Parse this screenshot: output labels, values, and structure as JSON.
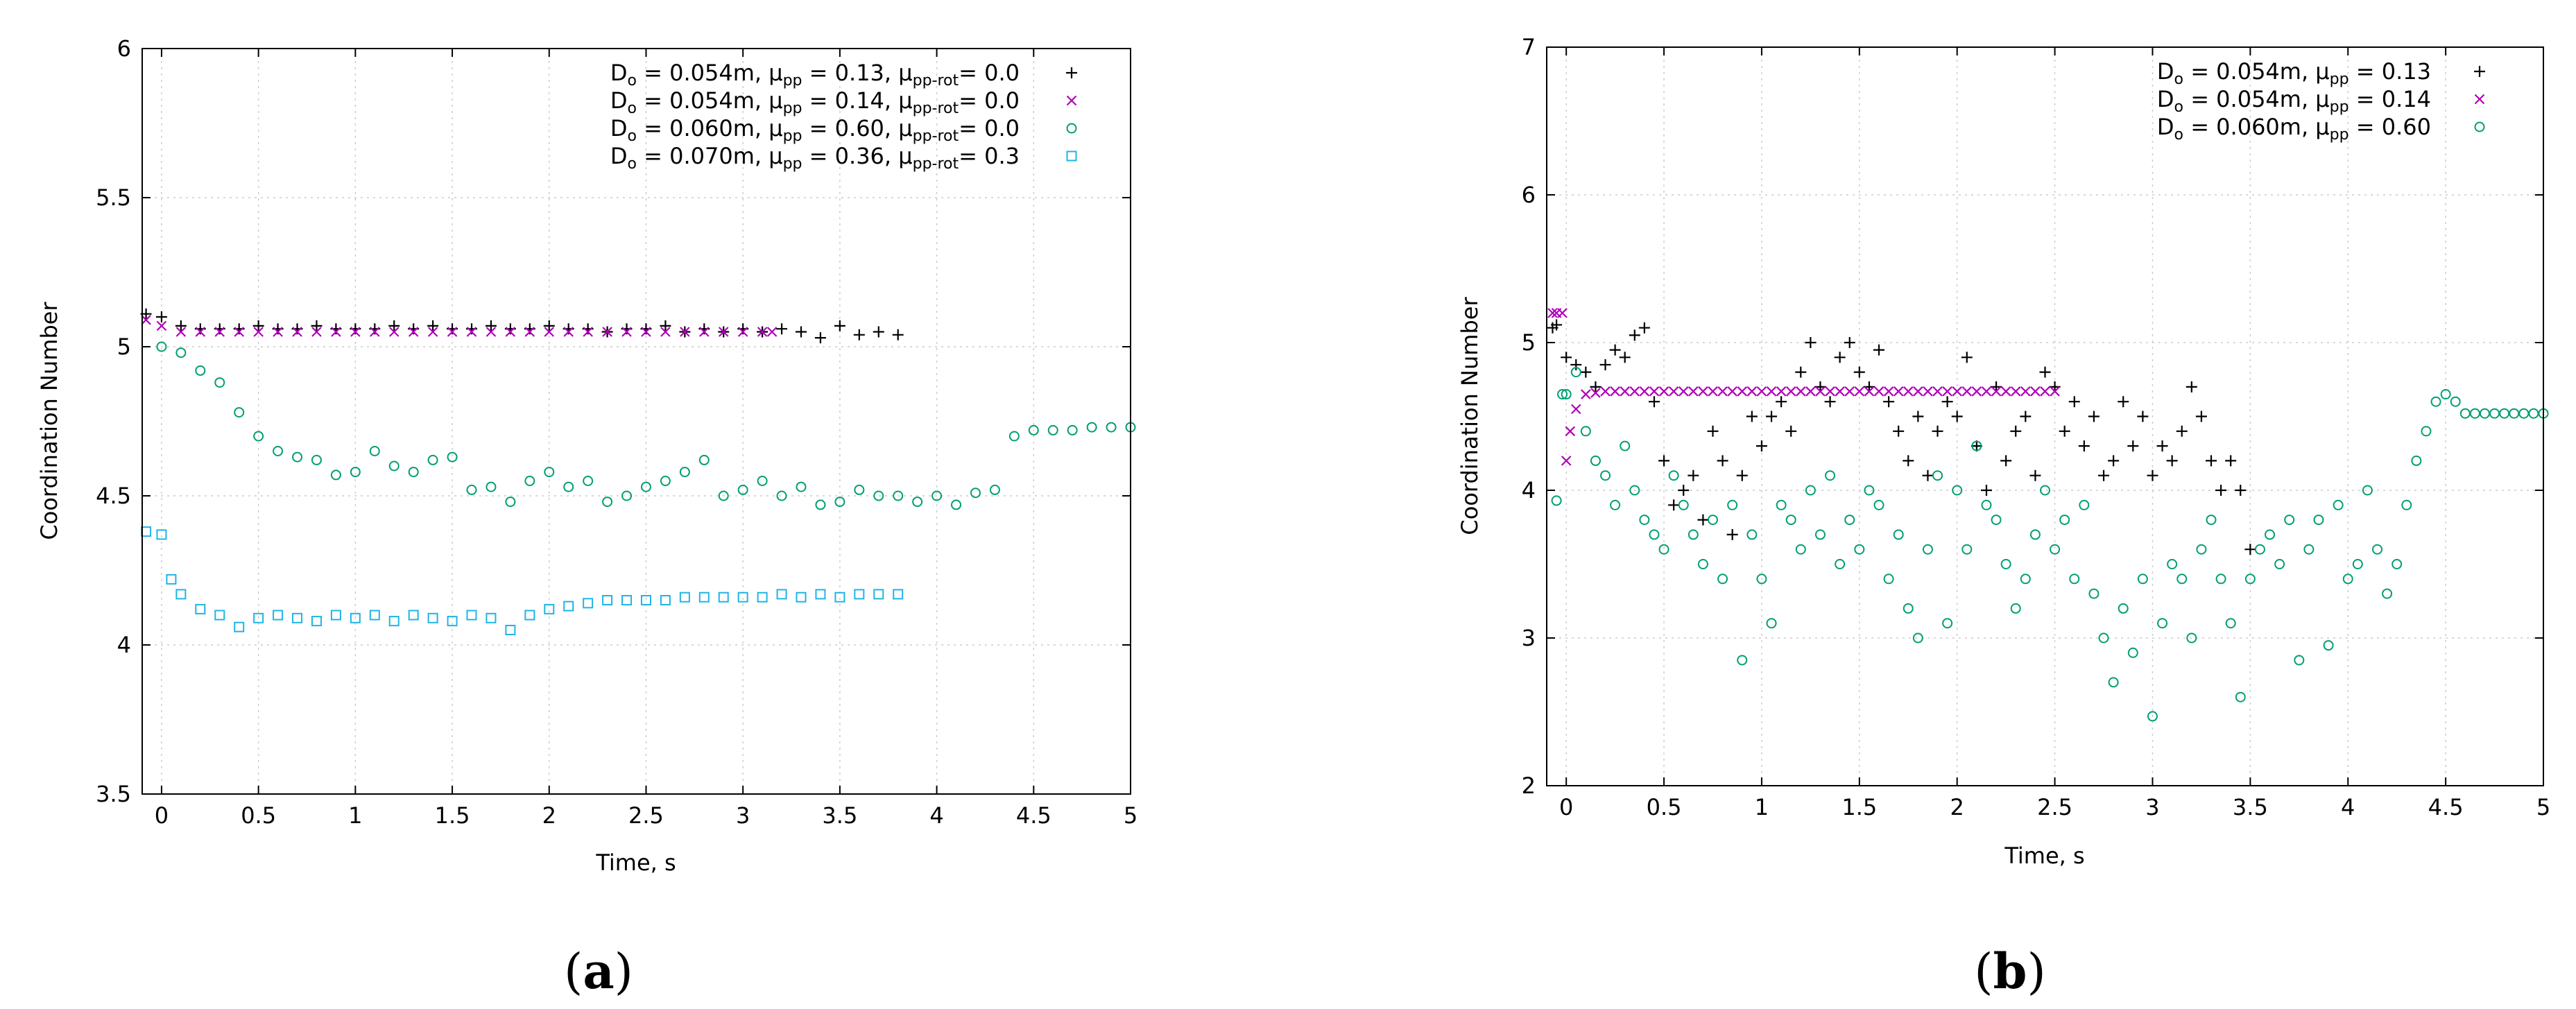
{
  "figure": {
    "panel_labels": [
      {
        "open": "(",
        "letter": "a",
        "close": ")"
      },
      {
        "open": "(",
        "letter": "b",
        "close": ")"
      }
    ]
  },
  "chart_data": [
    {
      "type": "scatter",
      "panel": "a",
      "title": "",
      "xlabel": "Time, s",
      "ylabel": "Coordination Number",
      "xlim": [
        -0.1,
        5
      ],
      "ylim": [
        3.5,
        6
      ],
      "xticks": [
        0,
        0.5,
        1,
        1.5,
        2,
        2.5,
        3,
        3.5,
        4,
        4.5,
        5
      ],
      "yticks": [
        3.5,
        4,
        4.5,
        5,
        5.5,
        6
      ],
      "xtick_labels": [
        "0",
        "0.5",
        "1",
        "1.5",
        "2",
        "2.5",
        "3",
        "3.5",
        "4",
        "4.5",
        "5"
      ],
      "ytick_labels": [
        "3.5",
        "4",
        "4.5",
        "5",
        "5.5",
        "6"
      ],
      "grid": true,
      "legend_position": "top-right",
      "series": [
        {
          "name": "Do = 0.054m, μpp = 0.13, μpp-rot= 0.0",
          "label_parts": [
            [
              "D",
              "o",
              " = 0.054m, "
            ],
            [
              "μ",
              "pp",
              " = 0.13, "
            ],
            [
              "μ",
              "pp-rot",
              "= 0.0"
            ]
          ],
          "marker": "plus",
          "color": "#000000",
          "x": [
            -0.08,
            0.0,
            0.1,
            0.2,
            0.3,
            0.4,
            0.5,
            0.6,
            0.7,
            0.8,
            0.9,
            1.0,
            1.1,
            1.2,
            1.3,
            1.4,
            1.5,
            1.6,
            1.7,
            1.8,
            1.9,
            2.0,
            2.1,
            2.2,
            2.3,
            2.4,
            2.5,
            2.6,
            2.7,
            2.8,
            2.9,
            3.0,
            3.1,
            3.2,
            3.3,
            3.4,
            3.5,
            3.6,
            3.7,
            3.8
          ],
          "y": [
            5.11,
            5.1,
            5.07,
            5.06,
            5.06,
            5.06,
            5.07,
            5.06,
            5.06,
            5.07,
            5.06,
            5.06,
            5.06,
            5.07,
            5.06,
            5.07,
            5.06,
            5.06,
            5.07,
            5.06,
            5.06,
            5.07,
            5.06,
            5.06,
            5.05,
            5.06,
            5.06,
            5.07,
            5.05,
            5.06,
            5.05,
            5.06,
            5.05,
            5.06,
            5.05,
            5.03,
            5.07,
            5.04,
            5.05,
            5.04
          ]
        },
        {
          "name": "Do = 0.054m, μpp = 0.14, μpp-rot= 0.0",
          "label_parts": [
            [
              "D",
              "o",
              " = 0.054m, "
            ],
            [
              "μ",
              "pp",
              " = 0.14, "
            ],
            [
              "μ",
              "pp-rot",
              "= 0.0"
            ]
          ],
          "marker": "cross",
          "color": "#b000b8",
          "x": [
            -0.08,
            0.0,
            0.1,
            0.2,
            0.3,
            0.4,
            0.5,
            0.6,
            0.7,
            0.8,
            0.9,
            1.0,
            1.1,
            1.2,
            1.3,
            1.4,
            1.5,
            1.6,
            1.7,
            1.8,
            1.9,
            2.0,
            2.1,
            2.2,
            2.3,
            2.4,
            2.5,
            2.6,
            2.7,
            2.8,
            2.9,
            3.0,
            3.1,
            3.15
          ],
          "y": [
            5.09,
            5.07,
            5.05,
            5.05,
            5.05,
            5.05,
            5.05,
            5.05,
            5.05,
            5.05,
            5.05,
            5.05,
            5.05,
            5.05,
            5.05,
            5.05,
            5.05,
            5.05,
            5.05,
            5.05,
            5.05,
            5.05,
            5.05,
            5.05,
            5.05,
            5.05,
            5.05,
            5.05,
            5.05,
            5.05,
            5.05,
            5.05,
            5.05,
            5.05
          ]
        },
        {
          "name": "Do = 0.060m, μpp = 0.60, μpp-rot= 0.0",
          "label_parts": [
            [
              "D",
              "o",
              " = 0.060m, "
            ],
            [
              "μ",
              "pp",
              " = 0.60, "
            ],
            [
              "μ",
              "pp-rot",
              "= 0.0"
            ]
          ],
          "marker": "circle",
          "color": "#009e73",
          "x": [
            0.0,
            0.1,
            0.2,
            0.3,
            0.4,
            0.5,
            0.6,
            0.7,
            0.8,
            0.9,
            1.0,
            1.1,
            1.2,
            1.3,
            1.4,
            1.5,
            1.6,
            1.7,
            1.8,
            1.9,
            2.0,
            2.1,
            2.2,
            2.3,
            2.4,
            2.5,
            2.6,
            2.7,
            2.8,
            2.9,
            3.0,
            3.1,
            3.2,
            3.3,
            3.4,
            3.5,
            3.6,
            3.7,
            3.8,
            3.9,
            4.0,
            4.1,
            4.2,
            4.3,
            4.4,
            4.5,
            4.6,
            4.7,
            4.8,
            4.9,
            5.0
          ],
          "y": [
            5.0,
            4.98,
            4.92,
            4.88,
            4.78,
            4.7,
            4.65,
            4.63,
            4.62,
            4.57,
            4.58,
            4.65,
            4.6,
            4.58,
            4.62,
            4.63,
            4.52,
            4.53,
            4.48,
            4.55,
            4.58,
            4.53,
            4.55,
            4.48,
            4.5,
            4.53,
            4.55,
            4.58,
            4.62,
            4.5,
            4.52,
            4.55,
            4.5,
            4.53,
            4.47,
            4.48,
            4.52,
            4.5,
            4.5,
            4.48,
            4.5,
            4.47,
            4.51,
            4.52,
            4.7,
            4.72,
            4.72,
            4.72,
            4.73,
            4.73,
            4.73
          ]
        },
        {
          "name": "Do = 0.070m, μpp = 0.36, μpp-rot= 0.3",
          "label_parts": [
            [
              "D",
              "o",
              " = 0.070m, "
            ],
            [
              "μ",
              "pp",
              " = 0.36, "
            ],
            [
              "μ",
              "pp-rot",
              "= 0.3"
            ]
          ],
          "marker": "square",
          "color": "#1fb4e6",
          "x": [
            -0.08,
            0.0,
            0.05,
            0.1,
            0.2,
            0.3,
            0.4,
            0.5,
            0.6,
            0.7,
            0.8,
            0.9,
            1.0,
            1.1,
            1.2,
            1.3,
            1.4,
            1.5,
            1.6,
            1.7,
            1.8,
            1.9,
            2.0,
            2.1,
            2.2,
            2.3,
            2.4,
            2.5,
            2.6,
            2.7,
            2.8,
            2.9,
            3.0,
            3.1,
            3.2,
            3.3,
            3.4,
            3.5,
            3.6,
            3.7,
            3.8
          ],
          "y": [
            4.38,
            4.37,
            4.22,
            4.17,
            4.12,
            4.1,
            4.06,
            4.09,
            4.1,
            4.09,
            4.08,
            4.1,
            4.09,
            4.1,
            4.08,
            4.1,
            4.09,
            4.08,
            4.1,
            4.09,
            4.05,
            4.1,
            4.12,
            4.13,
            4.14,
            4.15,
            4.15,
            4.15,
            4.15,
            4.16,
            4.16,
            4.16,
            4.16,
            4.16,
            4.17,
            4.16,
            4.17,
            4.16,
            4.17,
            4.17,
            4.17
          ]
        }
      ]
    },
    {
      "type": "scatter",
      "panel": "b",
      "title": "",
      "xlabel": "Time, s",
      "ylabel": "Coordination Number",
      "xlim": [
        -0.1,
        5
      ],
      "ylim": [
        2,
        7
      ],
      "xticks": [
        0,
        0.5,
        1,
        1.5,
        2,
        2.5,
        3,
        3.5,
        4,
        4.5,
        5
      ],
      "yticks": [
        2,
        3,
        4,
        5,
        6,
        7
      ],
      "xtick_labels": [
        "0",
        "0.5",
        "1",
        "1.5",
        "2",
        "2.5",
        "3",
        "3.5",
        "4",
        "4.5",
        "5"
      ],
      "ytick_labels": [
        "2",
        "3",
        "4",
        "5",
        "6",
        "7"
      ],
      "grid": true,
      "legend_position": "top-right",
      "series": [
        {
          "name": "Do = 0.054m, μpp = 0.13",
          "label_parts": [
            [
              "D",
              "o",
              " = 0.054m, "
            ],
            [
              "μ",
              "pp",
              " = 0.13"
            ]
          ],
          "marker": "plus",
          "color": "#000000",
          "x": [
            -0.07,
            -0.05,
            0.0,
            0.05,
            0.1,
            0.15,
            0.2,
            0.25,
            0.3,
            0.35,
            0.4,
            0.45,
            0.5,
            0.55,
            0.6,
            0.65,
            0.7,
            0.75,
            0.8,
            0.85,
            0.9,
            0.95,
            1.0,
            1.05,
            1.1,
            1.15,
            1.2,
            1.25,
            1.3,
            1.35,
            1.4,
            1.45,
            1.5,
            1.55,
            1.6,
            1.65,
            1.7,
            1.75,
            1.8,
            1.85,
            1.9,
            1.95,
            2.0,
            2.05,
            2.1,
            2.15,
            2.2,
            2.25,
            2.3,
            2.35,
            2.4,
            2.45,
            2.5,
            2.55,
            2.6,
            2.65,
            2.7,
            2.75,
            2.8,
            2.85,
            2.9,
            2.95,
            3.0,
            3.05,
            3.1,
            3.15,
            3.2,
            3.25,
            3.3,
            3.35,
            3.4,
            3.45,
            3.5
          ],
          "y": [
            5.1,
            5.12,
            4.9,
            4.85,
            4.8,
            4.7,
            4.85,
            4.95,
            4.9,
            5.05,
            5.1,
            4.6,
            4.2,
            3.9,
            4.0,
            4.1,
            3.8,
            4.4,
            4.2,
            3.7,
            4.1,
            4.5,
            4.3,
            4.5,
            4.6,
            4.4,
            4.8,
            5.0,
            4.7,
            4.6,
            4.9,
            5.0,
            4.8,
            4.7,
            4.95,
            4.6,
            4.4,
            4.2,
            4.5,
            4.1,
            4.4,
            4.6,
            4.5,
            4.9,
            4.3,
            4.0,
            4.7,
            4.2,
            4.4,
            4.5,
            4.1,
            4.8,
            4.7,
            4.4,
            4.6,
            4.3,
            4.5,
            4.1,
            4.2,
            4.6,
            4.3,
            4.5,
            4.1,
            4.3,
            4.2,
            4.4,
            4.7,
            4.5,
            4.2,
            4.0,
            4.2,
            4.0,
            3.6
          ]
        },
        {
          "name": "Do = 0.054m, μpp = 0.14",
          "label_parts": [
            [
              "D",
              "o",
              " = 0.054m, "
            ],
            [
              "μ",
              "pp",
              " = 0.14"
            ]
          ],
          "marker": "cross",
          "color": "#b000b8",
          "x": [
            -0.07,
            -0.05,
            -0.02,
            0.0,
            0.02,
            0.05,
            0.1,
            0.15,
            0.2,
            0.25,
            0.3,
            0.35,
            0.4,
            0.45,
            0.5,
            0.55,
            0.6,
            0.65,
            0.7,
            0.75,
            0.8,
            0.85,
            0.9,
            0.95,
            1.0,
            1.05,
            1.1,
            1.15,
            1.2,
            1.25,
            1.3,
            1.35,
            1.4,
            1.45,
            1.5,
            1.55,
            1.6,
            1.65,
            1.7,
            1.75,
            1.8,
            1.85,
            1.9,
            1.95,
            2.0,
            2.05,
            2.1,
            2.15,
            2.2,
            2.25,
            2.3,
            2.35,
            2.4,
            2.45,
            2.5
          ],
          "y": [
            5.2,
            5.2,
            5.2,
            4.2,
            4.4,
            4.55,
            4.65,
            4.66,
            4.67,
            4.67,
            4.67,
            4.67,
            4.67,
            4.67,
            4.67,
            4.67,
            4.67,
            4.67,
            4.67,
            4.67,
            4.67,
            4.67,
            4.67,
            4.67,
            4.67,
            4.67,
            4.67,
            4.67,
            4.67,
            4.67,
            4.67,
            4.67,
            4.67,
            4.67,
            4.67,
            4.67,
            4.67,
            4.67,
            4.67,
            4.67,
            4.67,
            4.67,
            4.67,
            4.67,
            4.67,
            4.67,
            4.67,
            4.67,
            4.67,
            4.67,
            4.67,
            4.67,
            4.67,
            4.67,
            4.67
          ]
        },
        {
          "name": "Do = 0.060m, μpp = 0.60",
          "label_parts": [
            [
              "D",
              "o",
              " = 0.060m, "
            ],
            [
              "μ",
              "pp",
              " = 0.60"
            ]
          ],
          "marker": "circle",
          "color": "#009e73",
          "x": [
            -0.05,
            -0.02,
            0.0,
            0.05,
            0.1,
            0.15,
            0.2,
            0.25,
            0.3,
            0.35,
            0.4,
            0.45,
            0.5,
            0.55,
            0.6,
            0.65,
            0.7,
            0.75,
            0.8,
            0.85,
            0.9,
            0.95,
            1.0,
            1.05,
            1.1,
            1.15,
            1.2,
            1.25,
            1.3,
            1.35,
            1.4,
            1.45,
            1.5,
            1.55,
            1.6,
            1.65,
            1.7,
            1.75,
            1.8,
            1.85,
            1.9,
            1.95,
            2.0,
            2.05,
            2.1,
            2.15,
            2.2,
            2.25,
            2.3,
            2.35,
            2.4,
            2.45,
            2.5,
            2.55,
            2.6,
            2.65,
            2.7,
            2.75,
            2.8,
            2.85,
            2.9,
            2.95,
            3.0,
            3.05,
            3.1,
            3.15,
            3.2,
            3.25,
            3.3,
            3.35,
            3.4,
            3.45,
            3.5,
            3.55,
            3.6,
            3.65,
            3.7,
            3.75,
            3.8,
            3.85,
            3.9,
            3.95,
            4.0,
            4.05,
            4.1,
            4.15,
            4.2,
            4.25,
            4.3,
            4.35,
            4.4,
            4.45,
            4.5,
            4.55,
            4.6,
            4.65,
            4.7,
            4.75,
            4.8,
            4.85,
            4.9,
            4.95,
            5.0
          ],
          "y": [
            3.93,
            4.65,
            4.65,
            4.8,
            4.4,
            4.2,
            4.1,
            3.9,
            4.3,
            4.0,
            3.8,
            3.7,
            3.6,
            4.1,
            3.9,
            3.7,
            3.5,
            3.8,
            3.4,
            3.9,
            2.85,
            3.7,
            3.4,
            3.1,
            3.9,
            3.8,
            3.6,
            4.0,
            3.7,
            4.1,
            3.5,
            3.8,
            3.6,
            4.0,
            3.9,
            3.4,
            3.7,
            3.2,
            3.0,
            3.6,
            4.1,
            3.1,
            4.0,
            3.6,
            4.3,
            3.9,
            3.8,
            3.5,
            3.2,
            3.4,
            3.7,
            4.0,
            3.6,
            3.8,
            3.4,
            3.9,
            3.3,
            3.0,
            2.7,
            3.2,
            2.9,
            3.4,
            2.47,
            3.1,
            3.5,
            3.4,
            3.0,
            3.6,
            3.8,
            3.4,
            3.1,
            2.6,
            3.4,
            3.6,
            3.7,
            3.5,
            3.8,
            2.85,
            3.6,
            3.8,
            2.95,
            3.9,
            3.4,
            3.5,
            4.0,
            3.6,
            3.3,
            3.5,
            3.9,
            4.2,
            4.4,
            4.6,
            4.65,
            4.6,
            4.52,
            4.52,
            4.52,
            4.52,
            4.52,
            4.52,
            4.52,
            4.52,
            4.52
          ]
        }
      ]
    }
  ]
}
